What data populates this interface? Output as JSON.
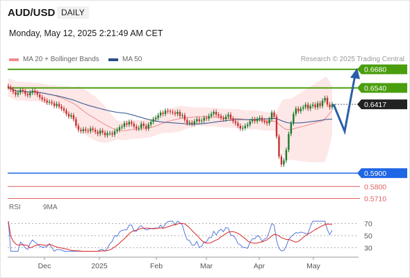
{
  "header": {
    "symbol": "AUD/USD",
    "timeframe": "DAILY",
    "datetime": "Monday, May 12, 2025 2:21:49 AM CET",
    "credit": "Research © 2025 Trading Central"
  },
  "legend": {
    "ma20": {
      "label": "MA 20 + Bollinger Bands",
      "color": "#f08c8c"
    },
    "ma50": {
      "label": "MA 50",
      "color": "#2a4f8a"
    }
  },
  "rsi_legend": {
    "rsi": {
      "label": "RSI",
      "color": "#5577dd"
    },
    "ma9": {
      "label": "9MA",
      "color": "#dd2222"
    }
  },
  "colors": {
    "resistance": "#4a9e0e",
    "support_main": "#1f66e5",
    "support_minor": "#e06060",
    "current": "#222222",
    "candle_up": "#1a7a2a",
    "candle_down": "#c83030",
    "forecast_arrow": "#2a5fa8"
  },
  "levels": [
    {
      "value": 0.668,
      "label": "0.6680",
      "kind": "resistance"
    },
    {
      "value": 0.654,
      "label": "0.6540",
      "kind": "resistance"
    },
    {
      "value": 0.6417,
      "label": "0.6417",
      "kind": "current"
    },
    {
      "value": 0.59,
      "label": "0.5900",
      "kind": "support_main"
    },
    {
      "value": 0.58,
      "label": "0.5800",
      "kind": "support_minor"
    },
    {
      "value": 0.571,
      "label": "0.5710",
      "kind": "support_minor"
    }
  ],
  "chart_data": {
    "type": "candlestick",
    "price_range": [
      0.565,
      0.671
    ],
    "x_ticks": [
      "Dec",
      "2025",
      "Feb",
      "Mar",
      "Apr",
      "May"
    ],
    "closes": [
      0.6544,
      0.653,
      0.651,
      0.649,
      0.6505,
      0.6525,
      0.6515,
      0.6495,
      0.6485,
      0.6505,
      0.652,
      0.6505,
      0.649,
      0.647,
      0.6455,
      0.6445,
      0.643,
      0.6435,
      0.6425,
      0.6405,
      0.642,
      0.64,
      0.6385,
      0.637,
      0.6345,
      0.6325,
      0.6335,
      0.6305,
      0.6255,
      0.6225,
      0.6215,
      0.623,
      0.622,
      0.6215,
      0.6235,
      0.6225,
      0.621,
      0.6195,
      0.622,
      0.6205,
      0.6185,
      0.62,
      0.62,
      0.619,
      0.6215,
      0.6225,
      0.6245,
      0.625,
      0.6275,
      0.6265,
      0.6285,
      0.627,
      0.625,
      0.6235,
      0.624,
      0.627,
      0.6255,
      0.6235,
      0.6265,
      0.6285,
      0.6305,
      0.6315,
      0.6335,
      0.6355,
      0.6345,
      0.637,
      0.6365,
      0.636,
      0.6355,
      0.6345,
      0.636,
      0.633,
      0.6335,
      0.63,
      0.6275,
      0.628,
      0.627,
      0.629,
      0.6305,
      0.629,
      0.6295,
      0.6315,
      0.631,
      0.633,
      0.6345,
      0.636,
      0.634,
      0.633,
      0.6315,
      0.6305,
      0.6325,
      0.634,
      0.631,
      0.629,
      0.6275,
      0.6255,
      0.6235,
      0.624,
      0.6255,
      0.6265,
      0.629,
      0.6305,
      0.629,
      0.6305,
      0.6315,
      0.6295,
      0.6285,
      0.6275,
      0.6305,
      0.6355,
      0.6325,
      0.6175,
      0.6025,
      0.5965,
      0.5995,
      0.6075,
      0.6195,
      0.6275,
      0.6345,
      0.6385,
      0.6365,
      0.6385,
      0.6395,
      0.6415,
      0.6385,
      0.6405,
      0.6415,
      0.6395,
      0.6425,
      0.6405,
      0.6445,
      0.6465,
      0.6415,
      0.6395,
      0.6417
    ],
    "rsi": {
      "levels": [
        30,
        50,
        70
      ],
      "range": [
        20,
        80
      ],
      "latest": 59
    }
  }
}
